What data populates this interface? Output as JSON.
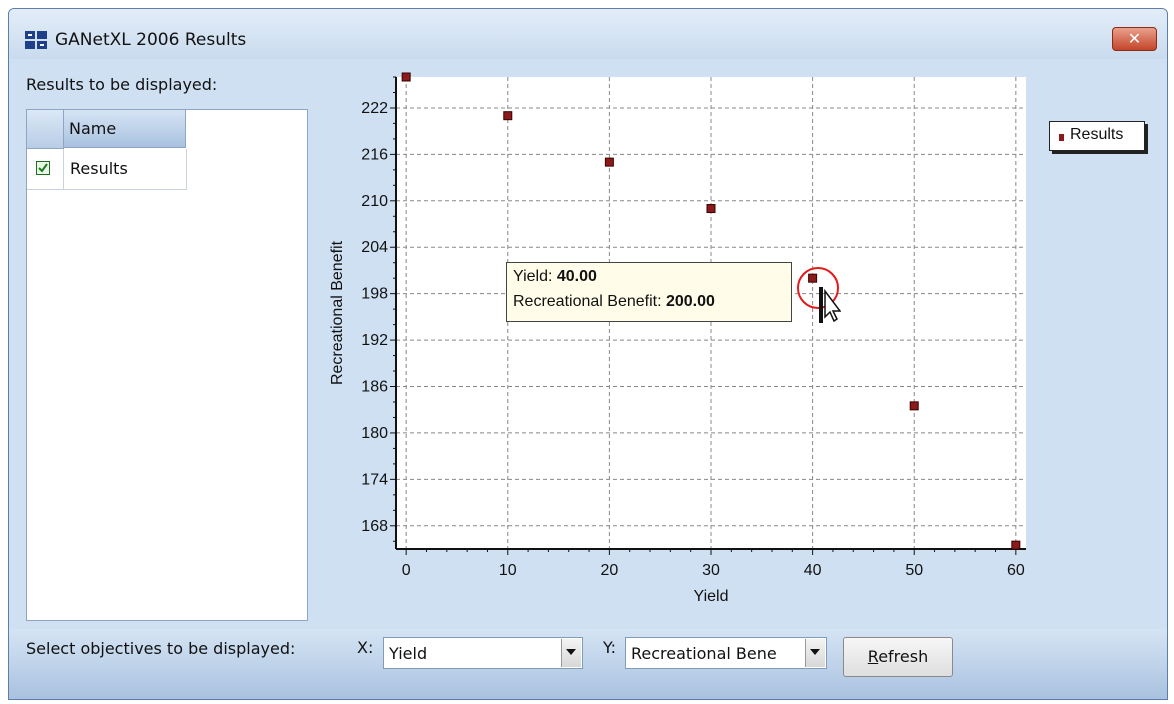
{
  "window": {
    "title": "GANetXL 2006 Results"
  },
  "results_panel": {
    "label": "Results to be displayed:",
    "column_header": "Name",
    "rows": [
      {
        "name": "Results",
        "checked": true
      }
    ]
  },
  "legend": {
    "entries": [
      "Results"
    ]
  },
  "tooltip": {
    "x_label": "Yield: ",
    "x_value": "40.00",
    "y_label": "Recreational Benefit: ",
    "y_value": "200.00"
  },
  "controls": {
    "select_label": "Select objectives to be displayed:",
    "x_label": "X:",
    "x_value": "Yield",
    "y_label": "Y:",
    "y_value": "Recreational Bene",
    "refresh_label": "Refresh"
  },
  "colors": {
    "point": "#8b1a1a",
    "accent": "#cfe0f3",
    "highlight_circle": "#e21b1b"
  },
  "chart_data": {
    "type": "scatter",
    "xlabel": "Yield",
    "ylabel": "Recreational Benefit",
    "xlim": [
      -1,
      61
    ],
    "ylim": [
      165,
      226
    ],
    "xticks": [
      0,
      10,
      20,
      30,
      40,
      50,
      60
    ],
    "yticks": [
      168,
      174,
      180,
      186,
      192,
      198,
      204,
      210,
      216,
      222
    ],
    "grid": true,
    "legend_position": "top-right",
    "series": [
      {
        "name": "Results",
        "x": [
          0,
          10,
          20,
          30,
          40,
          50,
          60
        ],
        "y": [
          226,
          221,
          215,
          209,
          200,
          183.5,
          165.5
        ]
      }
    ]
  }
}
